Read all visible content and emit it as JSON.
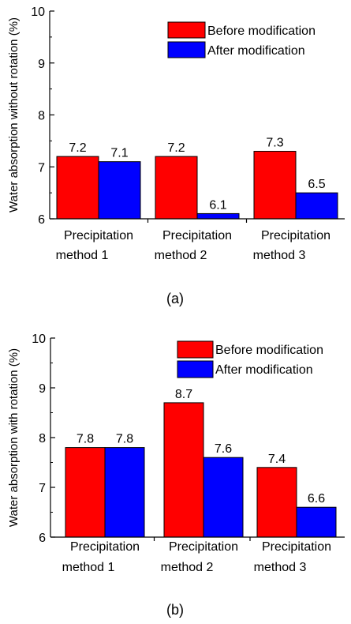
{
  "chart_data": [
    {
      "type": "bar",
      "panel_label": "(a)",
      "ylabel": "Water absorption without rotation (%)",
      "ylim": [
        6,
        10
      ],
      "yticks": [
        6,
        7,
        8,
        9,
        10
      ],
      "categories": [
        [
          "Precipitation",
          "method 1"
        ],
        [
          "Precipitation",
          "method 2"
        ],
        [
          "Precipitation",
          "method 3"
        ]
      ],
      "series": [
        {
          "name": "Before modification",
          "color": "#ff0000",
          "values": [
            7.2,
            7.2,
            7.3
          ]
        },
        {
          "name": "After modification",
          "color": "#0000ff",
          "values": [
            7.1,
            6.1,
            6.5
          ]
        }
      ],
      "legend_position": "top-right",
      "grid": false
    },
    {
      "type": "bar",
      "panel_label": "(b)",
      "ylabel": "Water absorption with rotation (%)",
      "ylim": [
        6,
        10
      ],
      "yticks": [
        6,
        7,
        8,
        9,
        10
      ],
      "categories": [
        [
          "Precipitation",
          "method 1"
        ],
        [
          "Precipitation",
          "method 2"
        ],
        [
          "Precipitation",
          "method 3"
        ]
      ],
      "series": [
        {
          "name": "Before modification",
          "color": "#ff0000",
          "values": [
            7.8,
            8.7,
            7.4
          ]
        },
        {
          "name": "After modification",
          "color": "#0000ff",
          "values": [
            7.8,
            7.6,
            6.6
          ]
        }
      ],
      "legend_position": "top-right",
      "grid": false
    }
  ]
}
